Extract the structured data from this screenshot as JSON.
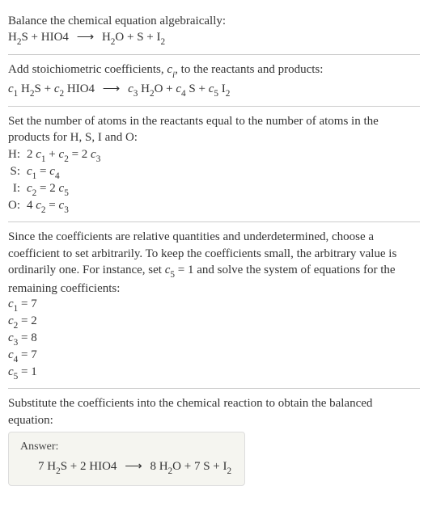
{
  "intro": {
    "line1": "Balance the chemical equation algebraically:",
    "reaction_lhs": "H",
    "reaction": {
      "r1": "H",
      "r1_sub": "2",
      "r1_b": "S + HIO4",
      "arrow": "⟶",
      "p1": "H",
      "p1_sub": "2",
      "p1_b": "O + S + I",
      "p2_sub": "2"
    }
  },
  "stoich": {
    "text_a": "Add stoichiometric coefficients, ",
    "ci": "c",
    "ci_sub": "i",
    "text_b": ", to the reactants and products:",
    "eq": {
      "c1": "c",
      "s1": "1",
      "t1": " H",
      "ts1": "2",
      "t1b": "S + ",
      "c2": "c",
      "s2": "2",
      "t2": " HIO4",
      "arrow": "⟶",
      "c3": "c",
      "s3": "3",
      "t3": " H",
      "ts3": "2",
      "t3b": "O + ",
      "c4": "c",
      "s4": "4",
      "t4": " S + ",
      "c5": "c",
      "s5": "5",
      "t5": " I",
      "ts5": "2"
    }
  },
  "atoms": {
    "text": "Set the number of atoms in the reactants equal to the number of atoms in the products for H, S, I and O:",
    "rows": [
      {
        "el": "H:",
        "lhs_a": "2 ",
        "c1": "c",
        "s1": "1",
        "mid": " + ",
        "c2": "c",
        "s2": "2",
        "eq": " = 2 ",
        "c3": "c",
        "s3": "3"
      },
      {
        "el": "S:",
        "c1": "c",
        "s1": "1",
        "eq": " = ",
        "c2": "c",
        "s2": "4"
      },
      {
        "el": "I:",
        "c1": "c",
        "s1": "2",
        "eq": " = 2 ",
        "c2": "c",
        "s2": "5"
      },
      {
        "el": "O:",
        "lhs_a": "4 ",
        "c1": "c",
        "s1": "2",
        "eq": " = ",
        "c2": "c",
        "s2": "3"
      }
    ]
  },
  "choose": {
    "text_a": "Since the coefficients are relative quantities and underdetermined, choose a coefficient to set arbitrarily. To keep the coefficients small, the arbitrary value is ordinarily one. For instance, set ",
    "cv": "c",
    "cs": "5",
    "text_b": " = 1 and solve the system of equations for the remaining coefficients:",
    "coefs": [
      {
        "c": "c",
        "s": "1",
        "v": " = 7"
      },
      {
        "c": "c",
        "s": "2",
        "v": " = 2"
      },
      {
        "c": "c",
        "s": "3",
        "v": " = 8"
      },
      {
        "c": "c",
        "s": "4",
        "v": " = 7"
      },
      {
        "c": "c",
        "s": "5",
        "v": " = 1"
      }
    ]
  },
  "subst": {
    "text": "Substitute the coefficients into the chemical reaction to obtain the balanced equation:"
  },
  "answer": {
    "label": "Answer:",
    "eq": {
      "a": "7 H",
      "as": "2",
      "b": "S + 2 HIO4",
      "arrow": "⟶",
      "c": "8 H",
      "cs": "2",
      "d": "O + 7 S + I",
      "ds": "2"
    }
  }
}
